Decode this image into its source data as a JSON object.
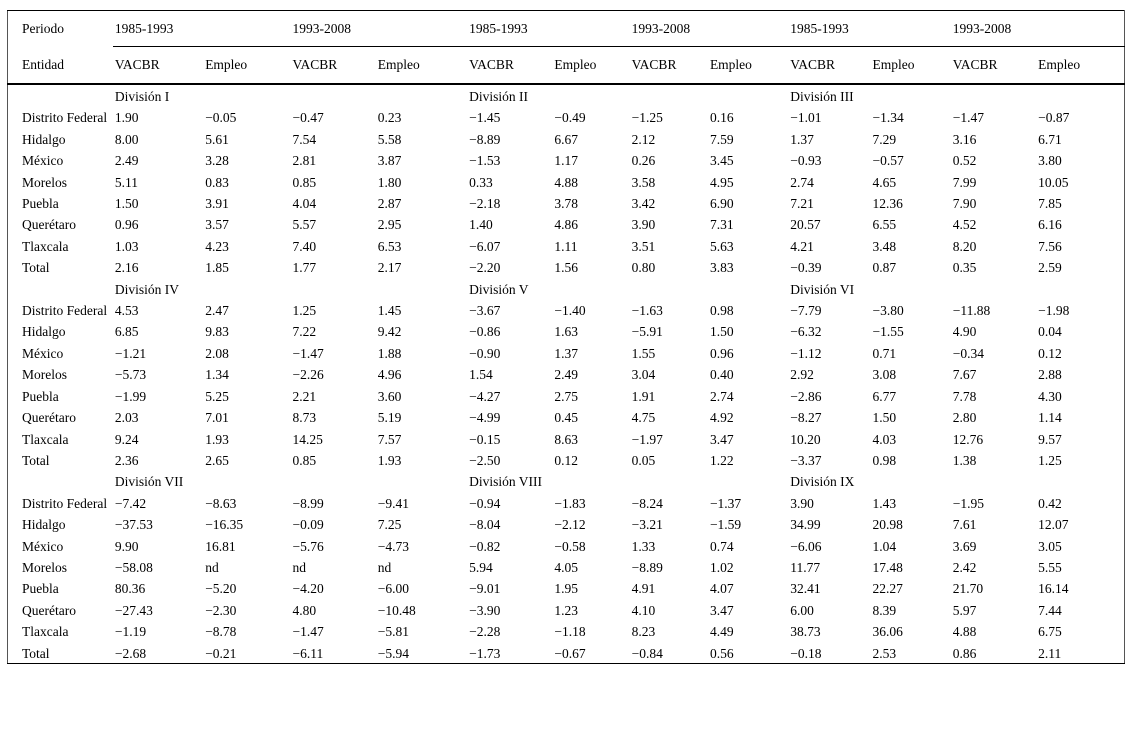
{
  "table": {
    "period_header_label": "Periodo",
    "entity_header_label": "Entidad",
    "periods": [
      "1985-1993",
      "1993-2008",
      "1985-1993",
      "1993-2008",
      "1985-1993",
      "1993-2008"
    ],
    "measures": [
      "VACBR",
      "Empleo",
      "VACBR",
      "Empleo",
      "VACBR",
      "Empleo",
      "VACBR",
      "Empleo",
      "VACBR",
      "Empleo",
      "VACBR",
      "Empleo"
    ],
    "missing_value_label": "nd",
    "blocks": [
      {
        "division_labels": [
          "División I",
          "División II",
          "División III"
        ],
        "rows": [
          {
            "entity": "Distrito Federal",
            "values": [
              "1.90",
              "−0.05",
              "−0.47",
              "0.23",
              "−1.45",
              "−0.49",
              "−1.25",
              "0.16",
              "−1.01",
              "−1.34",
              "−1.47",
              "−0.87"
            ]
          },
          {
            "entity": "Hidalgo",
            "values": [
              "8.00",
              "5.61",
              "7.54",
              "5.58",
              "−8.89",
              "6.67",
              "2.12",
              "7.59",
              "1.37",
              "7.29",
              "3.16",
              "6.71"
            ]
          },
          {
            "entity": "México",
            "values": [
              "2.49",
              "3.28",
              "2.81",
              "3.87",
              "−1.53",
              "1.17",
              "0.26",
              "3.45",
              "−0.93",
              "−0.57",
              "0.52",
              "3.80"
            ]
          },
          {
            "entity": "Morelos",
            "values": [
              "5.11",
              "0.83",
              "0.85",
              "1.80",
              "0.33",
              "4.88",
              "3.58",
              "4.95",
              "2.74",
              "4.65",
              "7.99",
              "10.05"
            ]
          },
          {
            "entity": "Puebla",
            "values": [
              "1.50",
              "3.91",
              "4.04",
              "2.87",
              "−2.18",
              "3.78",
              "3.42",
              "6.90",
              "7.21",
              "12.36",
              "7.90",
              "7.85"
            ]
          },
          {
            "entity": "Querétaro",
            "values": [
              "0.96",
              "3.57",
              "5.57",
              "2.95",
              "1.40",
              "4.86",
              "3.90",
              "7.31",
              "20.57",
              "6.55",
              "4.52",
              "6.16"
            ]
          },
          {
            "entity": "Tlaxcala",
            "values": [
              "1.03",
              "4.23",
              "7.40",
              "6.53",
              "−6.07",
              "1.11",
              "3.51",
              "5.63",
              "4.21",
              "3.48",
              "8.20",
              "7.56"
            ]
          },
          {
            "entity": "Total",
            "values": [
              "2.16",
              "1.85",
              "1.77",
              "2.17",
              "−2.20",
              "1.56",
              "0.80",
              "3.83",
              "−0.39",
              "0.87",
              "0.35",
              "2.59"
            ]
          }
        ]
      },
      {
        "division_labels": [
          "División IV",
          "División V",
          "División VI"
        ],
        "rows": [
          {
            "entity": "Distrito Federal",
            "values": [
              "4.53",
              "2.47",
              "1.25",
              "1.45",
              "−3.67",
              "−1.40",
              "−1.63",
              "0.98",
              "−7.79",
              "−3.80",
              "−11.88",
              "−1.98"
            ]
          },
          {
            "entity": "Hidalgo",
            "values": [
              "6.85",
              "9.83",
              "7.22",
              "9.42",
              "−0.86",
              "1.63",
              "−5.91",
              "1.50",
              "−6.32",
              "−1.55",
              "4.90",
              "0.04"
            ]
          },
          {
            "entity": "México",
            "values": [
              "−1.21",
              "2.08",
              "−1.47",
              "1.88",
              "−0.90",
              "1.37",
              "1.55",
              "0.96",
              "−1.12",
              "0.71",
              "−0.34",
              "0.12"
            ]
          },
          {
            "entity": "Morelos",
            "values": [
              "−5.73",
              "1.34",
              "−2.26",
              "4.96",
              "1.54",
              "2.49",
              "3.04",
              "0.40",
              "2.92",
              "3.08",
              "7.67",
              "2.88"
            ]
          },
          {
            "entity": "Puebla",
            "values": [
              "−1.99",
              "5.25",
              "2.21",
              "3.60",
              "−4.27",
              "2.75",
              "1.91",
              "2.74",
              "−2.86",
              "6.77",
              "7.78",
              "4.30"
            ]
          },
          {
            "entity": "Querétaro",
            "values": [
              "2.03",
              "7.01",
              "8.73",
              "5.19",
              "−4.99",
              "0.45",
              "4.75",
              "4.92",
              "−8.27",
              "1.50",
              "2.80",
              "1.14"
            ]
          },
          {
            "entity": "Tlaxcala",
            "values": [
              "9.24",
              "1.93",
              "14.25",
              "7.57",
              "−0.15",
              "8.63",
              "−1.97",
              "3.47",
              "10.20",
              "4.03",
              "12.76",
              "9.57"
            ]
          },
          {
            "entity": "Total",
            "values": [
              "2.36",
              "2.65",
              "0.85",
              "1.93",
              "−2.50",
              "0.12",
              "0.05",
              "1.22",
              "−3.37",
              "0.98",
              "1.38",
              "1.25"
            ]
          }
        ]
      },
      {
        "division_labels": [
          "División VII",
          "División VIII",
          "División IX"
        ],
        "rows": [
          {
            "entity": "Distrito Federal",
            "values": [
              "−7.42",
              "−8.63",
              "−8.99",
              "−9.41",
              "−0.94",
              "−1.83",
              "−8.24",
              "−1.37",
              "3.90",
              "1.43",
              "−1.95",
              "0.42"
            ]
          },
          {
            "entity": "Hidalgo",
            "values": [
              "−37.53",
              "−16.35",
              "−0.09",
              "7.25",
              "−8.04",
              "−2.12",
              "−3.21",
              "−1.59",
              "34.99",
              "20.98",
              "7.61",
              "12.07"
            ]
          },
          {
            "entity": "México",
            "values": [
              "9.90",
              "16.81",
              "−5.76",
              "−4.73",
              "−0.82",
              "−0.58",
              "1.33",
              "0.74",
              "−6.06",
              "1.04",
              "3.69",
              "3.05"
            ]
          },
          {
            "entity": "Morelos",
            "values": [
              "−58.08",
              "nd",
              "nd",
              "nd",
              "5.94",
              "4.05",
              "−8.89",
              "1.02",
              "11.77",
              "17.48",
              "2.42",
              "5.55"
            ]
          },
          {
            "entity": "Puebla",
            "values": [
              "80.36",
              "−5.20",
              "−4.20",
              "−6.00",
              "−9.01",
              "1.95",
              "4.91",
              "4.07",
              "32.41",
              "22.27",
              "21.70",
              "16.14"
            ]
          },
          {
            "entity": "Querétaro",
            "values": [
              "−27.43",
              "−2.30",
              "4.80",
              "−10.48",
              "−3.90",
              "1.23",
              "4.10",
              "3.47",
              "6.00",
              "8.39",
              "5.97",
              "7.44"
            ]
          },
          {
            "entity": "Tlaxcala",
            "values": [
              "−1.19",
              "−8.78",
              "−1.47",
              "−5.81",
              "−2.28",
              "−1.18",
              "8.23",
              "4.49",
              "38.73",
              "36.06",
              "4.88",
              "6.75"
            ]
          },
          {
            "entity": "Total",
            "values": [
              "−2.68",
              "−0.21",
              "−6.11",
              "−5.94",
              "−1.73",
              "−0.67",
              "−0.84",
              "0.56",
              "−0.18",
              "2.53",
              "0.86",
              "2.11"
            ]
          }
        ]
      }
    ]
  }
}
